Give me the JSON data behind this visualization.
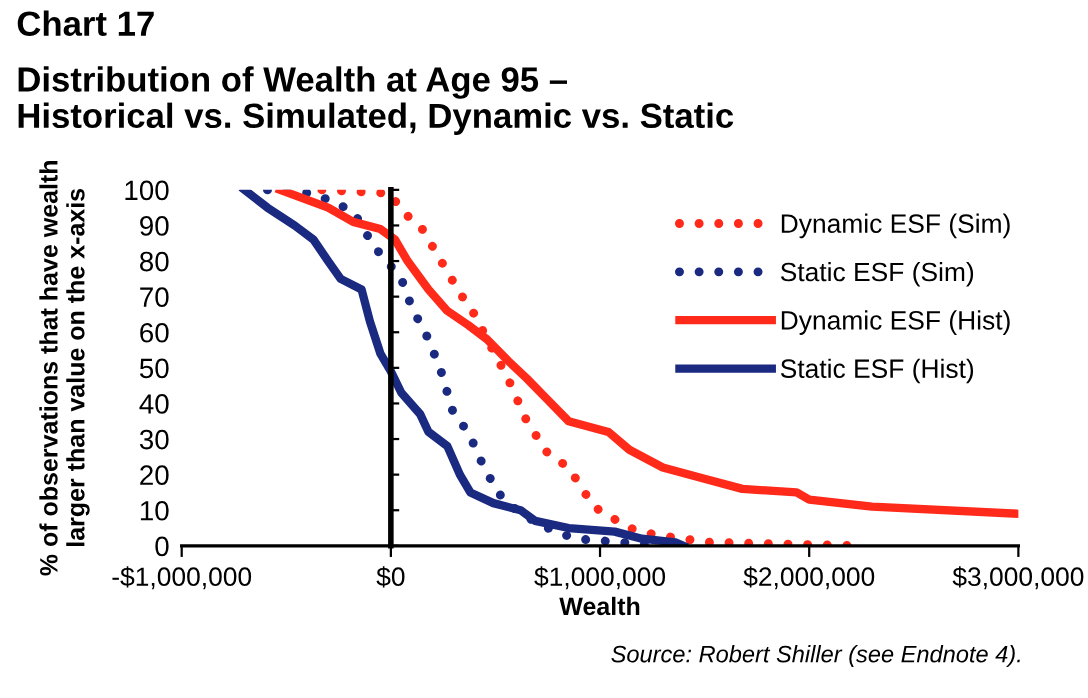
{
  "chart_data": {
    "type": "line",
    "title": "Chart 17",
    "subtitle": "Distribution of Wealth at Age 95 –\nHistorical vs. Simulated, Dynamic vs. Static",
    "xlabel": "Wealth",
    "ylabel": "% of observations that have wealth\nlarger than value on the x-axis",
    "annotations": [
      "Source: Robert Shiller (see Endnote 4)."
    ],
    "xlim": [
      -1000000,
      3000000
    ],
    "ylim": [
      0,
      100
    ],
    "xticks": [
      {
        "value": -1000000,
        "label": "-$1,000,000"
      },
      {
        "value": 0,
        "label": "$0"
      },
      {
        "value": 1000000,
        "label": "$1,000,000"
      },
      {
        "value": 2000000,
        "label": "$2,000,000"
      },
      {
        "value": 3000000,
        "label": "$3,000,000"
      }
    ],
    "yticks": [
      0,
      10,
      20,
      30,
      40,
      50,
      60,
      70,
      80,
      90,
      100
    ],
    "legend": "top right",
    "marker": "none",
    "series": [
      {
        "name": "Dynamic ESF (Sim)",
        "color": "#ff2a1a",
        "line_style": "dotted",
        "x": [
          -330000,
          0,
          50000,
          140000,
          240000,
          330000,
          400000,
          460000,
          560000,
          650000,
          750000,
          850000,
          970000,
          1140000,
          1270000,
          1520000,
          2250000
        ],
        "values": [
          100,
          99,
          94,
          90,
          80,
          71,
          65,
          58,
          47,
          35,
          26,
          22,
          11,
          5,
          3,
          1,
          0
        ]
      },
      {
        "name": "Static ESF (Sim)",
        "color": "#1a2a80",
        "line_style": "dotted",
        "x": [
          -590000,
          -370000,
          -180000,
          -80000,
          -20000,
          50000,
          100000,
          180000,
          240000,
          300000,
          370000,
          430000,
          510000,
          620000,
          750000,
          880000,
          1100000,
          1300000
        ],
        "values": [
          100,
          99,
          94,
          84,
          80,
          75,
          67,
          58,
          49,
          37,
          32,
          24,
          15,
          9,
          5,
          2,
          1,
          0
        ]
      },
      {
        "name": "Dynamic ESF (Hist)",
        "color": "#ff2a1a",
        "line_style": "solid",
        "x": [
          -530000,
          -300000,
          -180000,
          -50000,
          20000,
          80000,
          180000,
          270000,
          370000,
          460000,
          560000,
          650000,
          750000,
          850000,
          1040000,
          1140000,
          1300000,
          1490000,
          1680000,
          1940000,
          2000000,
          2300000,
          3000000
        ],
        "values": [
          100,
          95,
          91,
          89,
          86,
          80,
          72,
          66,
          62,
          58,
          52,
          47,
          41,
          35,
          32,
          27,
          22,
          19,
          16,
          15,
          13,
          11,
          9
        ]
      },
      {
        "name": "Static ESF (Hist)",
        "color": "#1a2a80",
        "line_style": "solid",
        "x": [
          -700000,
          -590000,
          -460000,
          -370000,
          -300000,
          -240000,
          -140000,
          -100000,
          -50000,
          0,
          50000,
          140000,
          180000,
          270000,
          330000,
          380000,
          490000,
          620000,
          690000,
          850000,
          1070000,
          1200000,
          1360000,
          1400000
        ],
        "values": [
          100,
          95,
          90,
          86,
          80,
          75,
          72,
          63,
          54,
          49,
          43,
          37,
          32,
          28,
          20,
          15,
          12,
          10,
          7,
          5,
          4,
          2,
          1,
          0
        ]
      }
    ]
  }
}
